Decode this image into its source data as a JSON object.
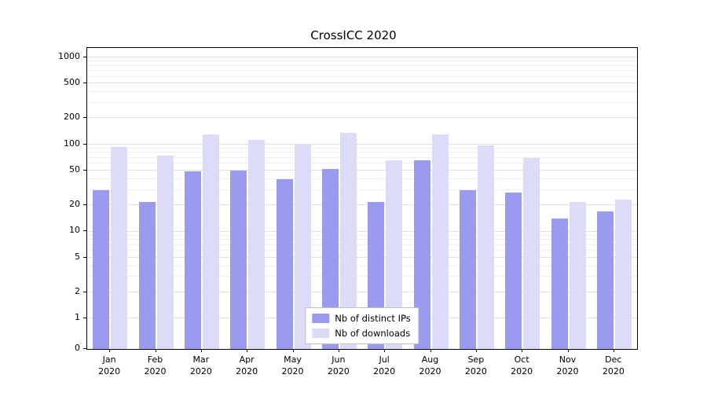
{
  "chart_data": {
    "type": "bar",
    "title": "CrossICC 2020",
    "year": "2020",
    "months": [
      "Jan",
      "Feb",
      "Mar",
      "Apr",
      "May",
      "Jun",
      "Jul",
      "Aug",
      "Sep",
      "Oct",
      "Nov",
      "Dec"
    ],
    "series": [
      {
        "name": "Nb of distinct IPs",
        "color": "#9a9aee",
        "values": [
          30,
          22,
          49,
          50,
          40,
          52,
          22,
          65,
          30,
          28,
          14,
          17
        ]
      },
      {
        "name": "Nb of downloads",
        "color": "#dcdcf8",
        "values": [
          93,
          75,
          130,
          112,
          100,
          135,
          65,
          130,
          97,
          70,
          22,
          23
        ]
      }
    ],
    "yscale": "symlog",
    "ylim": [
      0,
      1000
    ],
    "y_ticks": [
      0,
      1,
      2,
      5,
      10,
      20,
      50,
      100,
      200,
      500,
      1000
    ],
    "grid": true,
    "legend_position": "lower center",
    "colors": {
      "grid_minor": "#efefef",
      "grid_major": "#e2e2e2",
      "axis": "#000000",
      "background": "#ffffff"
    }
  }
}
